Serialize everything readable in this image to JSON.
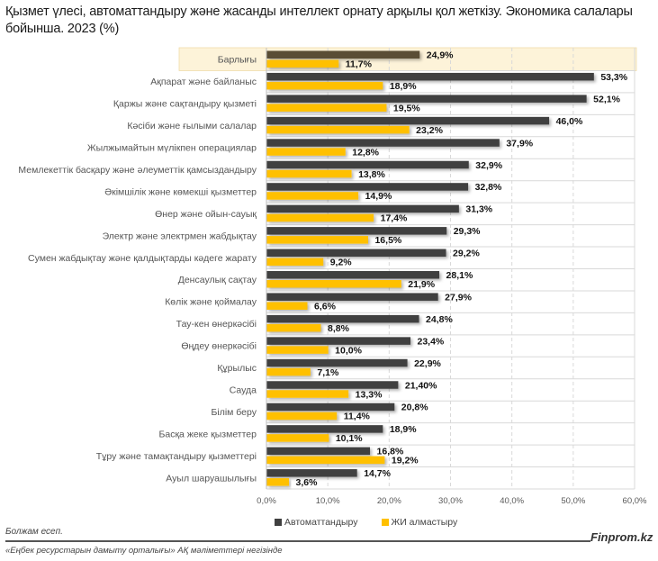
{
  "chart_data": {
    "type": "bar",
    "orientation": "horizontal",
    "title": "Қызмет үлесі, автоматтандыру және жасанды интеллект орнату арқылы  қол жеткізу. Экономика салалары бойынша. 2023 (%)",
    "xlabel": "",
    "ylabel": "",
    "xlim": [
      0,
      60
    ],
    "xticks": [
      "0,0%",
      "10,0%",
      "20,0%",
      "30,0%",
      "40,0%",
      "50,0%",
      "60,0%"
    ],
    "grid": true,
    "legend_position": "bottom",
    "highlight_category": "Барлығы",
    "categories": [
      "Барлығы",
      "Ақпарат және байланыс",
      "Қаржы және сақтандыру қызметі",
      "Кәсіби және ғылыми салалар",
      "Жылжымайтын мүлікпен операциялар",
      "Мемлекеттік басқару және әлеуметтік қамсыздандыру",
      "Әкімшілік және көмекші қызметтер",
      "Өнер және ойын-сауық",
      "Электр және электрмен жабдықтау",
      "Сумен жабдықтау және қалдықтарды кәдеге жарату",
      "Денсаулық сақтау",
      "Көлік және қоймалау",
      "Тау-кен өнеркәсібі",
      "Өңдеу өнеркәсібі",
      "Құрылыс",
      "Сауда",
      "Білім беру",
      "Басқа жеке қызметтер",
      "Тұру және тамақтандыру қызметтері",
      "Ауыл шаруашылығы"
    ],
    "series": [
      {
        "name": "Автоматтандыру",
        "color": "#404040",
        "highlight_color": "#5a4e36",
        "values": [
          24.9,
          53.3,
          52.1,
          46.0,
          37.9,
          32.9,
          32.8,
          31.3,
          29.3,
          29.2,
          28.1,
          27.9,
          24.8,
          23.4,
          22.9,
          21.4,
          20.8,
          18.9,
          16.8,
          14.7
        ],
        "labels": [
          "24,9%",
          "53,3%",
          "52,1%",
          "46,0%",
          "37,9%",
          "32,9%",
          "32,8%",
          "31,3%",
          "29,3%",
          "29,2%",
          "28,1%",
          "27,9%",
          "24,8%",
          "23,4%",
          "22,9%",
          "21,40%",
          "20,8%",
          "18,9%",
          "16,8%",
          "14,7%"
        ]
      },
      {
        "name": "ЖИ алмастыру",
        "color": "#ffc000",
        "values": [
          11.7,
          18.9,
          19.5,
          23.2,
          12.8,
          13.8,
          14.9,
          17.4,
          16.5,
          9.2,
          21.9,
          6.6,
          8.8,
          10.0,
          7.1,
          13.3,
          11.4,
          10.1,
          19.2,
          3.6
        ],
        "labels": [
          "11,7%",
          "18,9%",
          "19,5%",
          "23,2%",
          "12,8%",
          "13,8%",
          "14,9%",
          "17,4%",
          "16,5%",
          "9,2%",
          "21,9%",
          "6,6%",
          "8,8%",
          "10,0%",
          "7,1%",
          "13,3%",
          "11,4%",
          "10,1%",
          "19,2%",
          "3,6%"
        ]
      }
    ]
  },
  "footer": {
    "note": "Болжам есеп.",
    "source": "«Еңбек ресурстарын дамыту орталығы» АҚ мәліметтері негізінде",
    "brand": "Finprom.kz"
  },
  "colors": {
    "highlight_bg": "#fdf3d9",
    "grid": "#d9d9d9"
  }
}
